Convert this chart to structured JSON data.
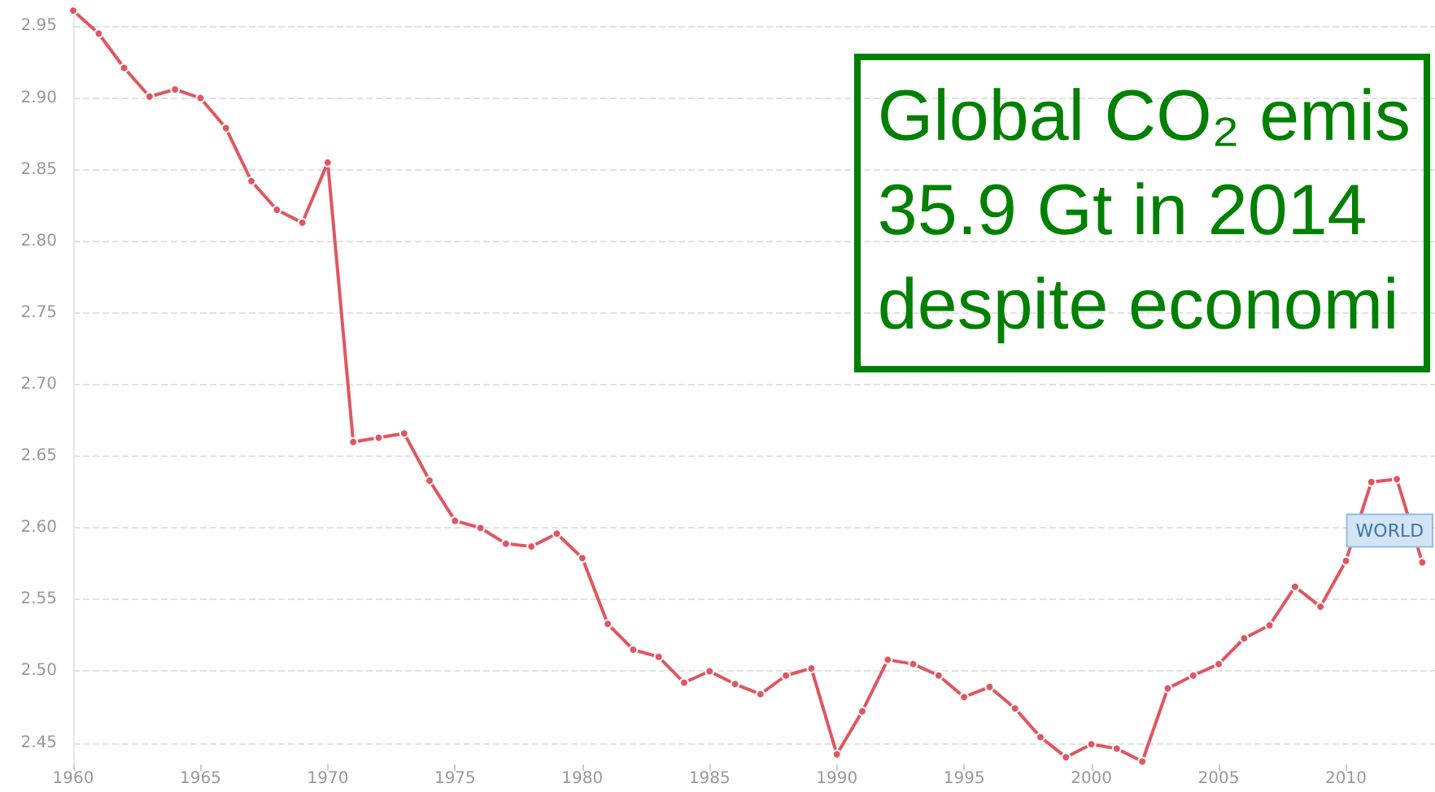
{
  "chart_data": {
    "type": "line",
    "x": [
      1960,
      1961,
      1962,
      1963,
      1964,
      1965,
      1966,
      1967,
      1968,
      1969,
      1970,
      1971,
      1972,
      1973,
      1974,
      1975,
      1976,
      1977,
      1978,
      1979,
      1980,
      1981,
      1982,
      1983,
      1984,
      1985,
      1986,
      1987,
      1988,
      1989,
      1990,
      1991,
      1992,
      1993,
      1994,
      1995,
      1996,
      1997,
      1998,
      1999,
      2000,
      2001,
      2002,
      2003,
      2004,
      2005,
      2006,
      2007,
      2008,
      2009,
      2010,
      2011,
      2012,
      2013
    ],
    "series": [
      {
        "name": "WORLD",
        "color": "#e05660",
        "values": [
          2.961,
          2.945,
          2.921,
          2.901,
          2.906,
          2.9,
          2.879,
          2.842,
          2.822,
          2.813,
          2.855,
          2.66,
          2.663,
          2.666,
          2.633,
          2.605,
          2.6,
          2.589,
          2.587,
          2.596,
          2.579,
          2.533,
          2.515,
          2.51,
          2.492,
          2.5,
          2.491,
          2.484,
          2.497,
          2.502,
          2.442,
          2.472,
          2.508,
          2.505,
          2.497,
          2.482,
          2.489,
          2.474,
          2.454,
          2.44,
          2.449,
          2.446,
          2.437,
          2.488,
          2.497,
          2.505,
          2.523,
          2.532,
          2.559,
          2.545,
          2.577,
          2.632,
          2.634,
          2.576
        ]
      }
    ],
    "xlim": [
      1960,
      2013.5
    ],
    "xticks": [
      1960,
      1965,
      1970,
      1975,
      1980,
      1985,
      1990,
      1995,
      2000,
      2005,
      2010
    ],
    "ylim": [
      2.435,
      2.965
    ],
    "yticks": [
      2.45,
      {
        "value": 2.5,
        "label": "2.50"
      },
      2.55,
      {
        "value": 2.6,
        "label": "2.60"
      },
      2.65,
      {
        "value": 2.7,
        "label": "2.70"
      },
      2.75,
      {
        "value": 2.8,
        "label": "2.80"
      },
      2.85,
      {
        "value": 2.9,
        "label": "2.90"
      },
      2.95
    ],
    "grid": "y",
    "marker": "circle",
    "line_style": "solid",
    "annotations": [
      "Global CO₂ emis\n35.9 Gt in 2014\ndespite economi"
    ]
  }
}
